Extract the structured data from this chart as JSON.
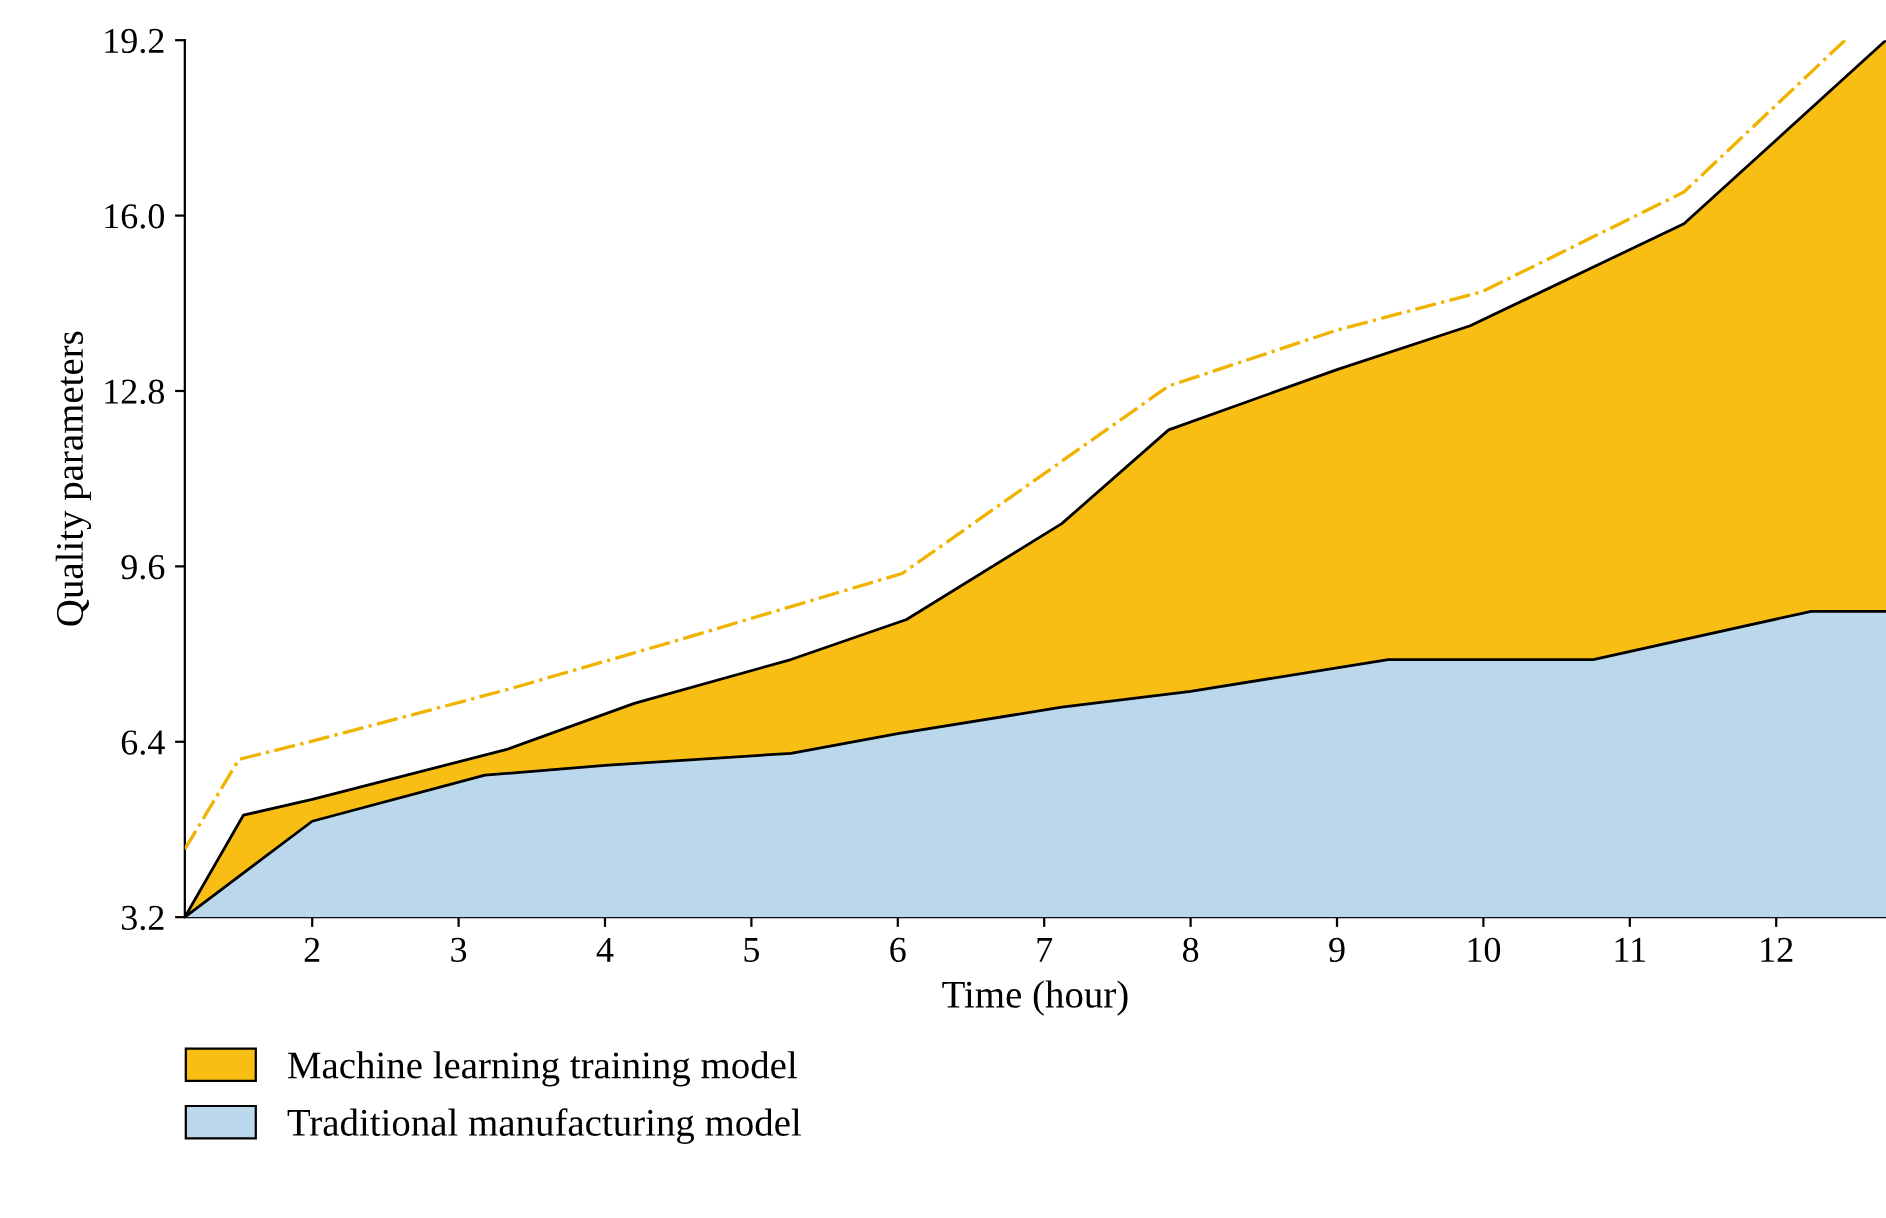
{
  "chart_data": {
    "type": "area",
    "xlabel": "Time (hour)",
    "ylabel": "Quality parameters",
    "xlim": [
      1.13,
      12.75
    ],
    "xticks": [
      2,
      3,
      4,
      5,
      6,
      7,
      8,
      9,
      10,
      11,
      12
    ],
    "ylim": [
      3.2,
      19.2
    ],
    "yticks": [
      {
        "value": 3.2,
        "label": "3.2"
      },
      {
        "value": 6.4,
        "label": "6.4"
      },
      {
        "value": 9.6,
        "label": "9.6"
      },
      {
        "value": 12.8,
        "label": "12.8"
      },
      {
        "value": 16.0,
        "label": "16.0"
      },
      {
        "value": 19.2,
        "label": "19.2"
      }
    ],
    "grid": false,
    "legend": "bottom left",
    "series": [
      {
        "name": "Machine learning training model",
        "color": "#f9be13",
        "x": [
          1.13,
          1.53,
          2,
          3.33,
          4.2,
          5.27,
          6.06,
          7.12,
          7.85,
          9,
          9.91,
          11.37,
          12.75
        ],
        "values": [
          3.2,
          5.06,
          5.35,
          6.26,
          7.1,
          7.9,
          8.63,
          10.38,
          12.09,
          13.19,
          13.99,
          15.85,
          19.2
        ]
      },
      {
        "name": "Traditional manufacturing model",
        "color": "#bbd7ec",
        "x": [
          1.13,
          2,
          3.18,
          4,
          5.27,
          6,
          7.12,
          8,
          9.35,
          10,
          10.75,
          12.24,
          12.75
        ],
        "values": [
          3.2,
          4.95,
          5.79,
          5.97,
          6.19,
          6.55,
          7.03,
          7.32,
          7.9,
          7.9,
          7.9,
          8.78,
          8.78
        ]
      },
      {
        "type": "line",
        "color": "#f0b400",
        "line_style": "dashed",
        "x": [
          1.13,
          1.5,
          2,
          3.33,
          4.52,
          6.03,
          7.85,
          9,
          9.99,
          11.37,
          12.47
        ],
        "values": [
          4.44,
          6.08,
          6.41,
          7.35,
          8.27,
          9.47,
          12.89,
          13.91,
          14.61,
          16.43,
          19.2
        ]
      }
    ]
  }
}
